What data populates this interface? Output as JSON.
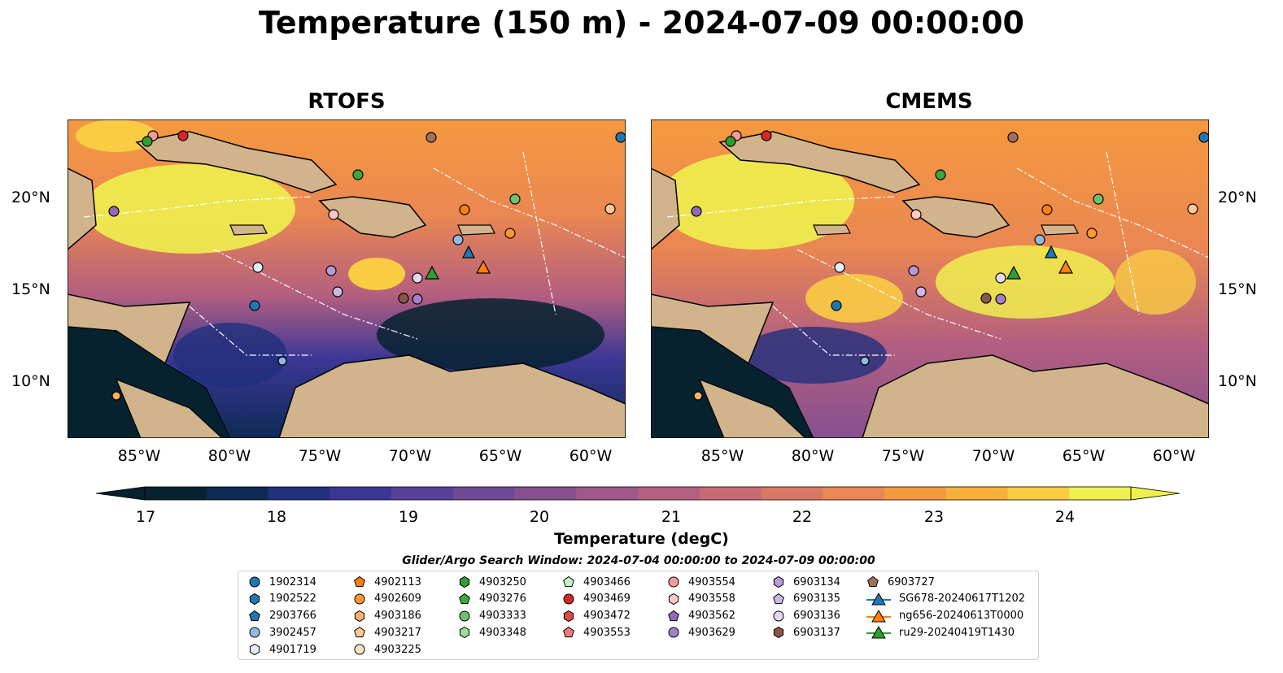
{
  "title": "Temperature (150 m) - 2024-07-09 00:00:00",
  "panels": [
    {
      "title": "RTOFS"
    },
    {
      "title": "CMEMS"
    }
  ],
  "lat_labels": [
    "20°N",
    "15°N",
    "10°N"
  ],
  "lon_labels": [
    "85°W",
    "80°W",
    "75°W",
    "70°W",
    "65°W",
    "60°W"
  ],
  "colorbar": {
    "label": "Temperature (degC)",
    "ticks": [
      "17",
      "18",
      "19",
      "20",
      "21",
      "22",
      "23",
      "24"
    ],
    "range": [
      17,
      24.5
    ],
    "extend": "both",
    "colormap": [
      "#06222f",
      "#0e2a55",
      "#21307c",
      "#3c3796",
      "#56409a",
      "#6e4994",
      "#86508f",
      "#9e588a",
      "#b45f7f",
      "#c86a73",
      "#d97763",
      "#ea8752",
      "#f5993f",
      "#f9b03b",
      "#f9cc43",
      "#eef04f"
    ]
  },
  "search_window": "Glider/Argo Search Window: 2024-07-04 00:00:00 to 2024-07-09 00:00:00",
  "legend": {
    "columns": [
      [
        {
          "label": "1902314",
          "shape": "circle",
          "color": "#1f77b4"
        },
        {
          "label": "1902522",
          "shape": "hexagon",
          "color": "#1f77b4"
        },
        {
          "label": "2903766",
          "shape": "pentagon",
          "color": "#1f77b4"
        },
        {
          "label": "3902457",
          "shape": "circle",
          "color": "#8fbbe0"
        },
        {
          "label": "4901719",
          "shape": "hexagon",
          "color": "#dfeefa"
        }
      ],
      [
        {
          "label": "4902113",
          "shape": "pentagon",
          "color": "#ff7f0e"
        },
        {
          "label": "4902609",
          "shape": "circle",
          "color": "#ff962e"
        },
        {
          "label": "4903186",
          "shape": "hexagon",
          "color": "#ffb266"
        },
        {
          "label": "4903217",
          "shape": "pentagon",
          "color": "#ffc896"
        },
        {
          "label": "4903225",
          "shape": "circle",
          "color": "#ffe2c5"
        }
      ],
      [
        {
          "label": "4903250",
          "shape": "hexagon",
          "color": "#2ca02c"
        },
        {
          "label": "4903276",
          "shape": "pentagon",
          "color": "#3aa83a"
        },
        {
          "label": "4903333",
          "shape": "circle",
          "color": "#6cc36c"
        },
        {
          "label": "4903348",
          "shape": "hexagon",
          "color": "#98dd98"
        }
      ],
      [
        {
          "label": "4903466",
          "shape": "pentagon",
          "color": "#c7f0c7"
        },
        {
          "label": "4903469",
          "shape": "circle",
          "color": "#d62728"
        },
        {
          "label": "4903472",
          "shape": "hexagon",
          "color": "#e04747"
        },
        {
          "label": "4903553",
          "shape": "pentagon",
          "color": "#f07a7a"
        }
      ],
      [
        {
          "label": "4903554",
          "shape": "circle",
          "color": "#f49a9a"
        },
        {
          "label": "4903558",
          "shape": "hexagon",
          "color": "#fbc7c7"
        },
        {
          "label": "4903562",
          "shape": "pentagon",
          "color": "#9467bd"
        },
        {
          "label": "4903629",
          "shape": "circle",
          "color": "#a37fc8"
        }
      ],
      [
        {
          "label": "6903134",
          "shape": "hexagon",
          "color": "#b89ad6"
        },
        {
          "label": "6903135",
          "shape": "pentagon",
          "color": "#cdb7e3"
        },
        {
          "label": "6903136",
          "shape": "circle",
          "color": "#e6d8f4"
        },
        {
          "label": "6903137",
          "shape": "hexagon",
          "color": "#8c564b"
        }
      ],
      [
        {
          "label": "6903727",
          "shape": "pentagon",
          "color": "#a0705e"
        },
        {
          "label": "SG678-20240617T1202",
          "shape": "triangle-line",
          "color": "#1f77b4"
        },
        {
          "label": "ng656-20240613T0000",
          "shape": "triangle-line",
          "color": "#ff7f0e"
        },
        {
          "label": "ru29-20240419T1430",
          "shape": "triangle-line",
          "color": "#2ca02c"
        }
      ]
    ]
  }
}
